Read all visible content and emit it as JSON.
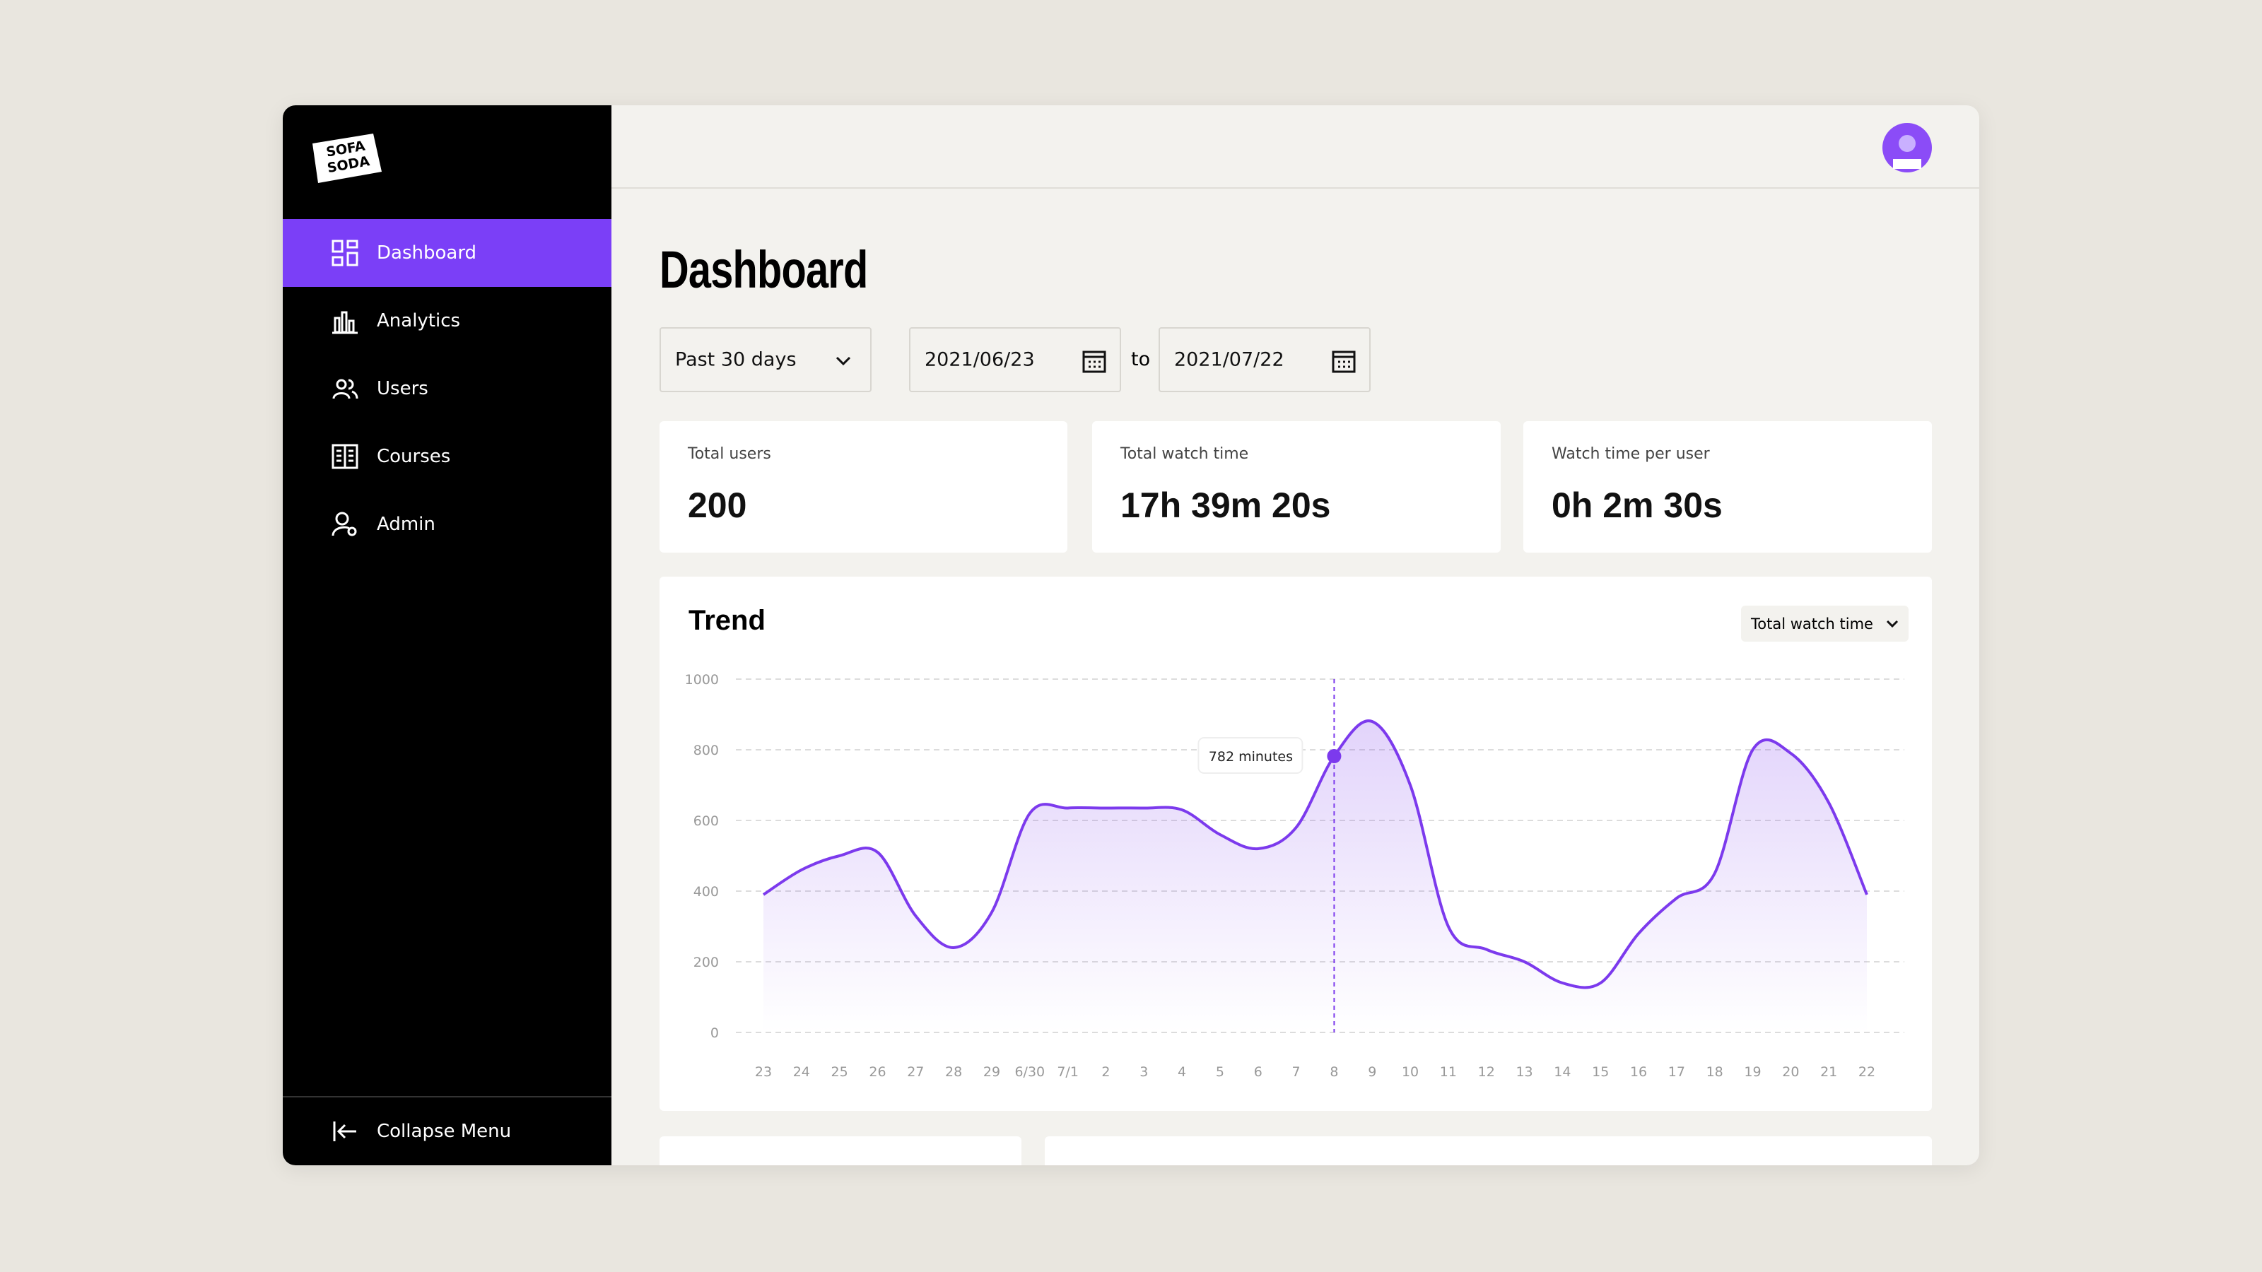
{
  "logo": [
    "SOFA",
    "SODA"
  ],
  "sidebar": {
    "menu": [
      "Dashboard",
      "Analytics",
      "Users",
      "Courses",
      "Admin"
    ],
    "collapse": "Collapse Menu"
  },
  "page_title": "Dashboard",
  "filters": {
    "range": "Past 30 days",
    "start": "2021/06/23",
    "separator": "to",
    "end": "2021/07/22"
  },
  "stats": [
    {
      "label": "Total users",
      "value": 200
    },
    {
      "label": "Total watch time",
      "value": "17h 39m 20s"
    },
    {
      "label": "Watch time per user",
      "value": "0h 2m 30s"
    }
  ],
  "chart_data": {
    "type": "line",
    "title": "Trend",
    "metric_selector": "Total watch time",
    "categories": [
      "23",
      "24",
      "25",
      "26",
      "27",
      "28",
      "29",
      "6/30",
      "7/1",
      "2",
      "3",
      "4",
      "5",
      "6",
      "7",
      "8",
      "9",
      "10",
      "11",
      "12",
      "13",
      "14",
      "15",
      "16",
      "17",
      "18",
      "19",
      "20",
      "21",
      "22"
    ],
    "values": [
      390,
      460,
      500,
      510,
      330,
      240,
      340,
      620,
      635,
      635,
      635,
      630,
      560,
      520,
      580,
      782,
      880,
      700,
      300,
      235,
      200,
      140,
      140,
      280,
      380,
      450,
      800,
      790,
      650,
      390
    ],
    "value_labels": [
      null,
      null,
      null,
      null,
      null,
      null,
      null,
      null,
      null,
      null,
      null,
      null,
      null,
      null,
      null,
      "782 minutes",
      null,
      null,
      null,
      null,
      null,
      null,
      null,
      null,
      null,
      null,
      null,
      null,
      null,
      null
    ],
    "color": "#7c3aed",
    "ylim": [
      0,
      1000
    ],
    "yticks": [
      0,
      200,
      400,
      600,
      800,
      1000
    ],
    "grid": true
  }
}
